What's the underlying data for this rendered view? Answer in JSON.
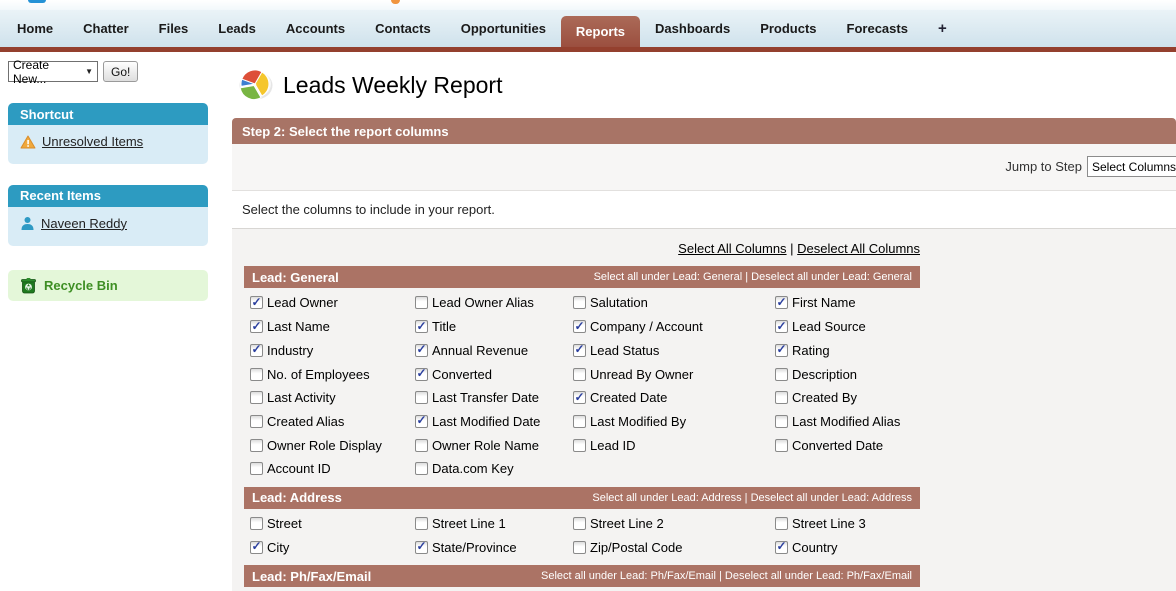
{
  "nav": {
    "tabs": [
      "Home",
      "Chatter",
      "Files",
      "Leads",
      "Accounts",
      "Contacts",
      "Opportunities",
      "Reports",
      "Dashboards",
      "Products",
      "Forecasts"
    ],
    "active_tab": "Reports",
    "plus_label": "+"
  },
  "sidebar": {
    "create_new": {
      "select_value": "Create New...",
      "go_label": "Go!"
    },
    "shortcut": {
      "title": "Shortcut",
      "items": [
        {
          "label": "Unresolved Items",
          "icon": "warning-icon"
        }
      ]
    },
    "recent": {
      "title": "Recent Items",
      "items": [
        {
          "label": "Naveen Reddy",
          "icon": "person-icon"
        }
      ]
    },
    "recycle_bin": {
      "label": "Recycle Bin",
      "icon": "recycle-bin-icon"
    }
  },
  "report": {
    "title": "Leads Weekly Report",
    "title_icon": "report-pie-icon",
    "step_header": "Step 2: Select the report columns",
    "jump_to_step": {
      "label": "Jump to Step",
      "selected": "Select Columns"
    },
    "instruction": "Select the columns to include in your report.",
    "select_all_label": "Select All Columns",
    "deselect_all_label": "Deselect All Columns",
    "links_separator": " | ",
    "sections": [
      {
        "title": "Lead: General",
        "select_all_label": "Select all under Lead: General",
        "deselect_all_label": "Deselect all under Lead: General",
        "columns": [
          {
            "label": "Lead Owner",
            "checked": true
          },
          {
            "label": "Lead Owner Alias",
            "checked": false
          },
          {
            "label": "Salutation",
            "checked": false
          },
          {
            "label": "First Name",
            "checked": true
          },
          {
            "label": "Last Name",
            "checked": true
          },
          {
            "label": "Title",
            "checked": true
          },
          {
            "label": "Company / Account",
            "checked": true
          },
          {
            "label": "Lead Source",
            "checked": true
          },
          {
            "label": "Industry",
            "checked": true
          },
          {
            "label": "Annual Revenue",
            "checked": true
          },
          {
            "label": "Lead Status",
            "checked": true
          },
          {
            "label": "Rating",
            "checked": true
          },
          {
            "label": "No. of Employees",
            "checked": false
          },
          {
            "label": "Converted",
            "checked": true
          },
          {
            "label": "Unread By Owner",
            "checked": false
          },
          {
            "label": "Description",
            "checked": false
          },
          {
            "label": "Last Activity",
            "checked": false
          },
          {
            "label": "Last Transfer Date",
            "checked": false
          },
          {
            "label": "Created Date",
            "checked": true
          },
          {
            "label": "Created By",
            "checked": false
          },
          {
            "label": "Created Alias",
            "checked": false
          },
          {
            "label": "Last Modified Date",
            "checked": true
          },
          {
            "label": "Last Modified By",
            "checked": false
          },
          {
            "label": "Last Modified Alias",
            "checked": false
          },
          {
            "label": "Owner Role Display",
            "checked": false
          },
          {
            "label": "Owner Role Name",
            "checked": false
          },
          {
            "label": "Lead ID",
            "checked": false
          },
          {
            "label": "Converted Date",
            "checked": false
          },
          {
            "label": "Account ID",
            "checked": false
          },
          {
            "label": "Data.com Key",
            "checked": false
          }
        ]
      },
      {
        "title": "Lead: Address",
        "select_all_label": "Select all under Lead: Address",
        "deselect_all_label": "Deselect all under Lead: Address",
        "columns": [
          {
            "label": "Street",
            "checked": false
          },
          {
            "label": "Street Line 1",
            "checked": false
          },
          {
            "label": "Street Line 2",
            "checked": false
          },
          {
            "label": "Street Line 3",
            "checked": false
          },
          {
            "label": "City",
            "checked": true
          },
          {
            "label": "State/Province",
            "checked": true
          },
          {
            "label": "Zip/Postal Code",
            "checked": false
          },
          {
            "label": "Country",
            "checked": true
          }
        ]
      },
      {
        "title": "Lead: Ph/Fax/Email",
        "select_all_label": "Select all under Lead: Ph/Fax/Email",
        "deselect_all_label": "Deselect all under Lead: Ph/Fax/Email",
        "columns": []
      }
    ]
  },
  "colors": {
    "brand_red_bar": "#94402e",
    "active_tab": "#9b4f3f",
    "step_bar": "#a87466",
    "section_header": "#ab7365",
    "sidebar_header_teal": "#2d9bc1",
    "sidebar_panel_blue": "#d9ecf6",
    "recycle_panel_green": "#e4f7d9",
    "recycle_text": "#3e8f24",
    "content_gray": "#f4f3f2",
    "check_mark": "#2b3f9e"
  }
}
